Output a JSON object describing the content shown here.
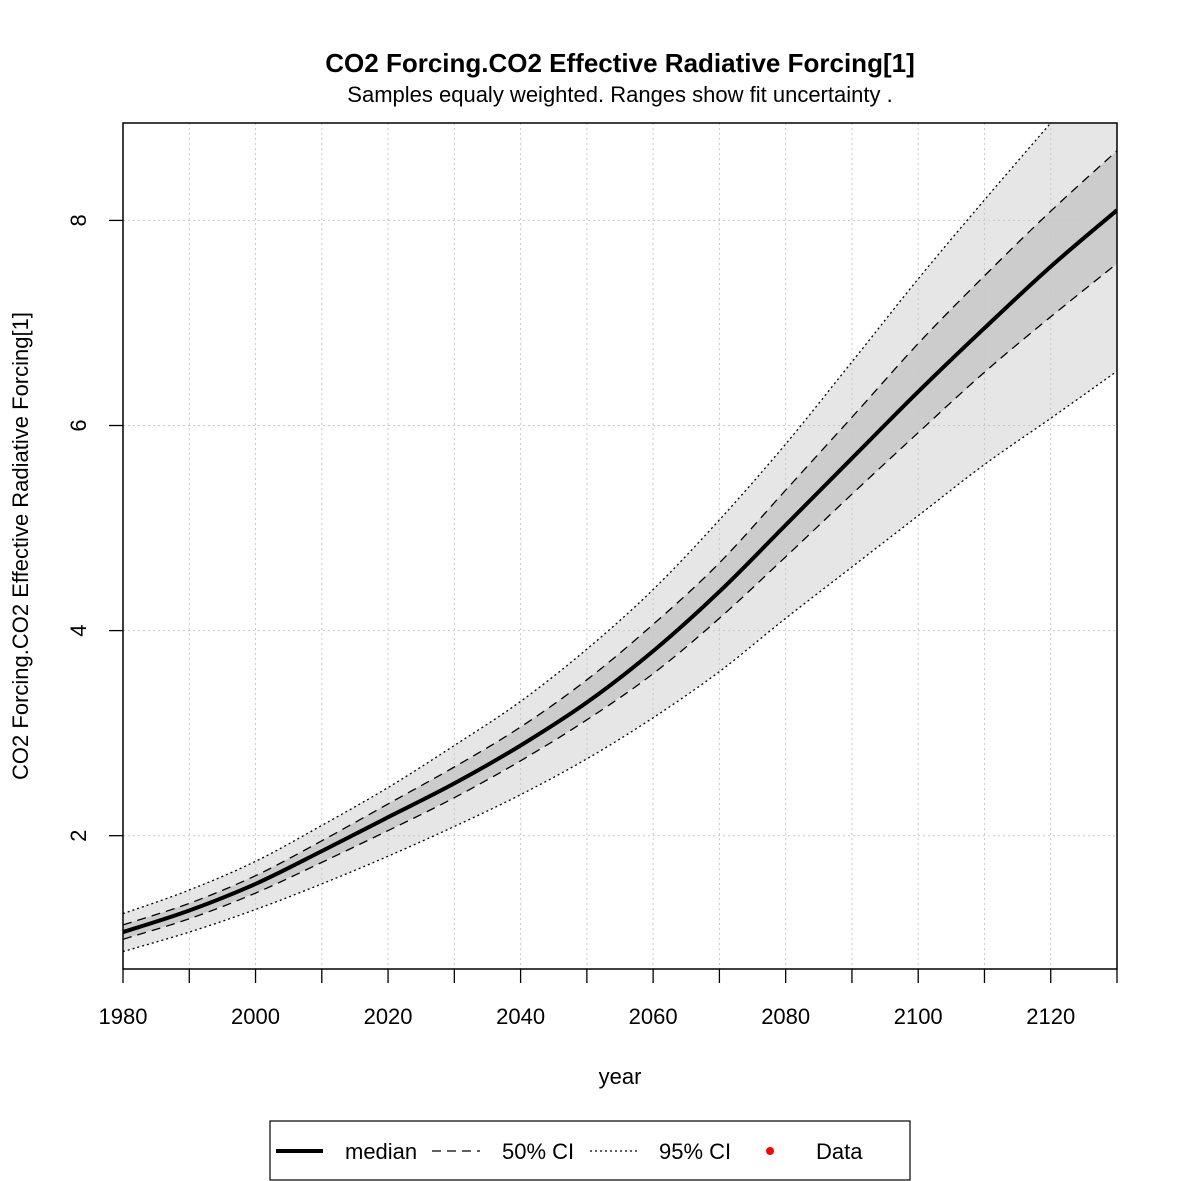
{
  "chart_data": {
    "type": "line",
    "title": "CO2 Forcing.CO2 Effective Radiative Forcing[1]",
    "subtitle": "Samples equaly weighted. Ranges show  fit uncertainty .",
    "xlabel": "year",
    "ylabel": "CO2 Forcing.CO2 Effective Radiative Forcing[1]",
    "xlim": [
      1980,
      2130
    ],
    "ylim": [
      0.7,
      8.95
    ],
    "x_ticks": [
      1980,
      2000,
      2020,
      2040,
      2060,
      2080,
      2100,
      2120
    ],
    "x_minor_ticks": [
      1990,
      2010,
      2030,
      2050,
      2070,
      2090,
      2110,
      2130
    ],
    "y_ticks": [
      2,
      4,
      6,
      8
    ],
    "grid": true,
    "legend_position": "bottom",
    "x": [
      1980,
      1990,
      2000,
      2010,
      2020,
      2030,
      2040,
      2050,
      2060,
      2070,
      2080,
      2090,
      2100,
      2110,
      2120,
      2130
    ],
    "series": [
      {
        "name": "median",
        "style": "solid",
        "values": [
          1.06,
          1.27,
          1.53,
          1.85,
          2.18,
          2.51,
          2.88,
          3.3,
          3.8,
          4.38,
          5.03,
          5.68,
          6.33,
          6.95,
          7.55,
          8.1
        ]
      },
      {
        "name": "50% CI",
        "style": "dashed",
        "band": "lower",
        "values": [
          0.99,
          1.19,
          1.44,
          1.74,
          2.05,
          2.37,
          2.73,
          3.13,
          3.58,
          4.12,
          4.72,
          5.33,
          5.93,
          6.52,
          7.06,
          7.58
        ]
      },
      {
        "name": "50% CI",
        "style": "dashed",
        "band": "upper",
        "values": [
          1.13,
          1.34,
          1.61,
          1.95,
          2.31,
          2.67,
          3.06,
          3.52,
          4.06,
          4.66,
          5.37,
          6.08,
          6.8,
          7.46,
          8.09,
          8.68
        ]
      },
      {
        "name": "95% CI",
        "style": "dotted",
        "band": "lower",
        "values": [
          0.87,
          1.06,
          1.28,
          1.53,
          1.8,
          2.09,
          2.4,
          2.75,
          3.15,
          3.6,
          4.12,
          4.62,
          5.12,
          5.62,
          6.07,
          6.53
        ]
      },
      {
        "name": "95% CI",
        "style": "dotted",
        "band": "upper",
        "values": [
          1.24,
          1.47,
          1.75,
          2.1,
          2.47,
          2.88,
          3.31,
          3.82,
          4.4,
          5.08,
          5.82,
          6.62,
          7.43,
          8.2,
          8.95,
          9.7
        ]
      }
    ],
    "legend": {
      "entries": [
        {
          "label": "median",
          "style": "solid"
        },
        {
          "label": "50% CI",
          "style": "dashed"
        },
        {
          "label": "95% CI",
          "style": "dotted"
        },
        {
          "label": "Data",
          "style": "point"
        }
      ]
    },
    "colors": {
      "band95": "#e6e6e6",
      "band50": "#cccccc",
      "grid": "#c8c8c8",
      "line": "#000000",
      "data_point": "#ff0000"
    }
  }
}
